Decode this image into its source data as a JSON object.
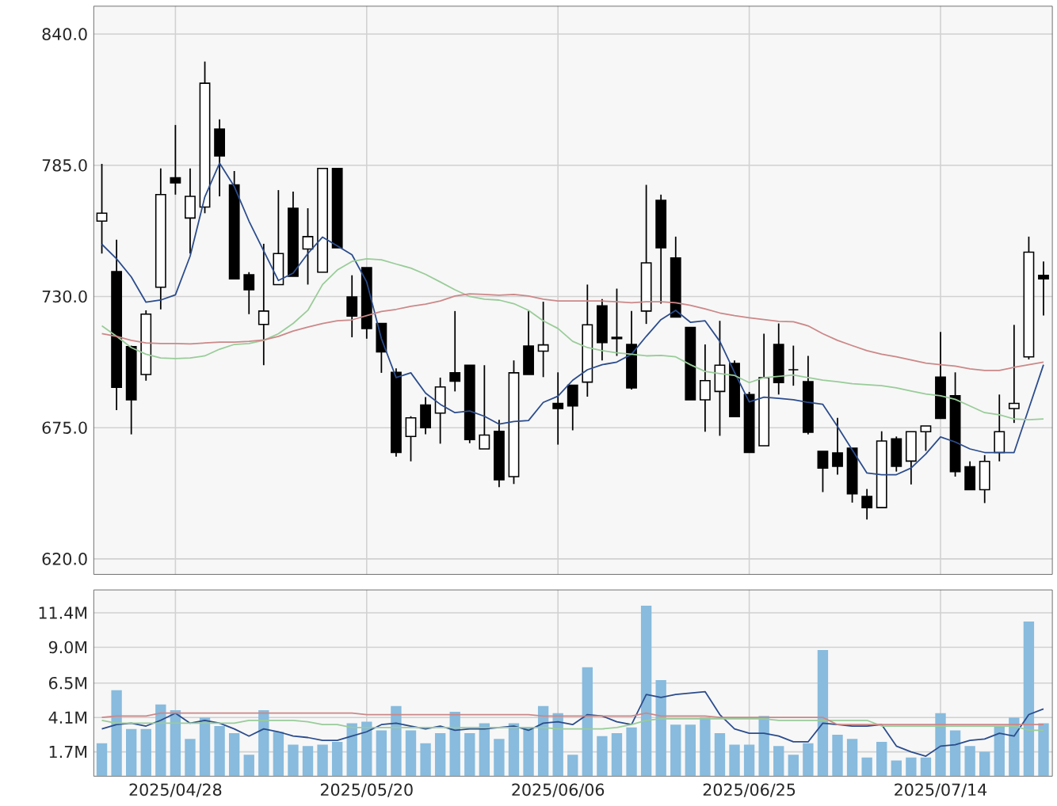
{
  "chart_data": [
    {
      "type": "candlestick",
      "tick_labels": "y",
      "grid": true,
      "categories": [
        null,
        null,
        null,
        null,
        null,
        "2025/04/28",
        null,
        null,
        null,
        null,
        null,
        null,
        null,
        null,
        null,
        null,
        null,
        null,
        "2025/05/20",
        null,
        null,
        null,
        null,
        null,
        null,
        null,
        null,
        null,
        null,
        null,
        null,
        "2025/06/06",
        null,
        null,
        null,
        null,
        null,
        null,
        null,
        null,
        null,
        null,
        null,
        null,
        "2025/06/25",
        null,
        null,
        null,
        null,
        null,
        null,
        null,
        null,
        null,
        null,
        null,
        null,
        "2025/07/14",
        null,
        null,
        null,
        null,
        null,
        null,
        null
      ],
      "ylim": [
        613.5,
        851.7
      ],
      "yticks": [
        {
          "value": 620,
          "label": "620.0"
        },
        {
          "value": 675,
          "label": "675.0"
        },
        {
          "value": 730,
          "label": "730.0"
        },
        {
          "value": 785,
          "label": "785.0"
        },
        {
          "value": 840,
          "label": "840.0"
        }
      ],
      "ohlc": [
        [
          761.6,
          785.6,
          748.0,
          764.9
        ],
        [
          740.4,
          753.8,
          682.4,
          691.9
        ],
        [
          709.0,
          709.4,
          672.2,
          686.7
        ],
        [
          697.3,
          724.2,
          694.7,
          722.6
        ],
        [
          733.9,
          783.7,
          724.6,
          772.7
        ],
        [
          779.8,
          801.9,
          772.7,
          777.6
        ],
        [
          762.9,
          783.7,
          748.0,
          772.0
        ],
        [
          767.5,
          828.5,
          764.9,
          819.4
        ],
        [
          800.2,
          804.3,
          772.0,
          788.9
        ],
        [
          776.8,
          782.6,
          737.4,
          737.4
        ],
        [
          739.1,
          740.2,
          722.6,
          732.8
        ],
        [
          718.3,
          752.1,
          701.2,
          723.9
        ],
        [
          735.0,
          774.6,
          735.0,
          748.0
        ],
        [
          767.0,
          774.0,
          738.5,
          738.5
        ],
        [
          749.9,
          767.0,
          735.0,
          755.1
        ],
        [
          740.2,
          783.7,
          740.2,
          783.7
        ],
        [
          783.7,
          783.7,
          750.4,
          750.4
        ],
        [
          729.8,
          738.9,
          712.9,
          721.8
        ],
        [
          742.1,
          742.1,
          712.3,
          716.6
        ],
        [
          718.7,
          718.7,
          698.0,
          706.8
        ],
        [
          698.2,
          699.9,
          662.9,
          664.6
        ],
        [
          671.3,
          679.8,
          660.9,
          679.1
        ],
        [
          684.5,
          687.8,
          672.2,
          675.0
        ],
        [
          681.1,
          696.0,
          668.3,
          692.1
        ],
        [
          698.0,
          723.9,
          690.2,
          694.5
        ],
        [
          701.2,
          701.2,
          668.5,
          670.0
        ],
        [
          666.1,
          701.2,
          666.1,
          671.9
        ],
        [
          673.5,
          678.3,
          650.1,
          653.2
        ],
        [
          654.5,
          703.2,
          651.4,
          698.0
        ],
        [
          709.2,
          723.9,
          697.3,
          697.3
        ],
        [
          707.1,
          727.8,
          696.2,
          709.7
        ],
        [
          685.2,
          698.2,
          667.9,
          683.0
        ],
        [
          692.8,
          692.8,
          673.9,
          684.1
        ],
        [
          694.1,
          735.0,
          688.0,
          718.1
        ],
        [
          726.1,
          728.9,
          703.2,
          710.7
        ],
        [
          712.9,
          733.3,
          705.1,
          712.3
        ],
        [
          709.9,
          723.9,
          691.0,
          691.7
        ],
        [
          723.9,
          776.8,
          718.5,
          744.1
        ],
        [
          770.3,
          772.7,
          727.0,
          750.4
        ],
        [
          746.2,
          755.1,
          721.4,
          721.4
        ],
        [
          717.0,
          717.0,
          686.7,
          686.7
        ],
        [
          686.7,
          709.9,
          673.3,
          694.7
        ],
        [
          690.2,
          719.8,
          671.6,
          701.2
        ],
        [
          701.9,
          703.2,
          679.6,
          679.6
        ],
        [
          688.9,
          690.0,
          664.6,
          664.6
        ],
        [
          667.4,
          714.4,
          667.4,
          696.0
        ],
        [
          709.9,
          718.7,
          688.9,
          693.9
        ],
        [
          699.3,
          709.4,
          692.6,
          699.3
        ],
        [
          694.3,
          705.1,
          672.2,
          673.1
        ],
        [
          665.1,
          665.1,
          648.0,
          658.1
        ],
        [
          664.4,
          679.1,
          655.3,
          658.8
        ],
        [
          666.4,
          666.4,
          643.6,
          647.3
        ],
        [
          646.2,
          649.3,
          636.5,
          641.5
        ],
        [
          641.5,
          673.5,
          641.5,
          669.4
        ],
        [
          670.3,
          671.3,
          656.6,
          658.8
        ],
        [
          661.0,
          673.3,
          651.2,
          673.3
        ],
        [
          673.3,
          675.7,
          665.3,
          675.7
        ],
        [
          696.2,
          715.1,
          678.9,
          678.9
        ],
        [
          688.4,
          698.2,
          654.5,
          656.6
        ],
        [
          658.6,
          660.9,
          649.0,
          649.0
        ],
        [
          649.0,
          663.5,
          643.4,
          660.9
        ],
        [
          664.6,
          688.9,
          660.9,
          673.3
        ],
        [
          683.0,
          718.1,
          677.0,
          685.2
        ],
        [
          704.7,
          755.1,
          703.6,
          748.6
        ],
        [
          738.9,
          744.7,
          722.0,
          737.4
        ]
      ],
      "series": [
        {
          "type": "line",
          "color": "#2b4c8c",
          "values": [
            751.9,
            745.8,
            738.2,
            727.6,
            728.5,
            730.7,
            746.9,
            771.8,
            785.9,
            776.1,
            761.6,
            749.1,
            736.7,
            739.8,
            748.0,
            754.9,
            751.2,
            747.5,
            736.1,
            712.3,
            696.0,
            698.0,
            689.5,
            684.8,
            681.3,
            682.0,
            679.8,
            676.5,
            677.6,
            678.0,
            685.6,
            688.2,
            694.9,
            699.3,
            701.4,
            702.5,
            705.8,
            713.3,
            720.3,
            724.2,
            719.2,
            719.8,
            711.2,
            698.2,
            685.8,
            687.8,
            687.3,
            686.7,
            685.6,
            684.8,
            675.5,
            665.7,
            656.0,
            655.3,
            655.3,
            658.1,
            664.0,
            671.1,
            669.0,
            666.1,
            664.6,
            664.6,
            664.6,
            683.0,
            701.4
          ]
        },
        {
          "type": "line",
          "color": "#99cc99",
          "values": [
            717.7,
            713.3,
            708.6,
            705.8,
            704.2,
            704.0,
            704.2,
            705.1,
            707.9,
            709.9,
            710.3,
            711.6,
            714.4,
            718.7,
            724.2,
            735.0,
            741.1,
            744.7,
            745.8,
            745.4,
            743.6,
            741.9,
            739.3,
            736.1,
            732.8,
            730.0,
            728.9,
            728.5,
            727.0,
            724.2,
            719.8,
            716.6,
            711.2,
            708.6,
            707.3,
            706.4,
            705.8,
            705.1,
            705.3,
            704.7,
            701.4,
            698.6,
            697.7,
            696.9,
            693.9,
            696.0,
            696.5,
            697.1,
            696.0,
            694.9,
            694.3,
            693.4,
            693.0,
            692.6,
            691.7,
            690.4,
            689.1,
            688.4,
            686.9,
            684.1,
            681.3,
            680.4,
            678.7,
            678.3,
            678.7
          ]
        },
        {
          "type": "line",
          "color": "#cc8888",
          "values": [
            714.4,
            713.3,
            711.6,
            710.5,
            710.3,
            710.3,
            710.1,
            710.5,
            710.9,
            710.9,
            711.2,
            711.8,
            713.3,
            715.5,
            717.2,
            718.7,
            719.8,
            720.2,
            722.0,
            723.7,
            724.6,
            725.9,
            726.8,
            728.1,
            730.2,
            731.1,
            730.9,
            730.5,
            730.9,
            730.2,
            728.9,
            728.1,
            728.1,
            728.1,
            728.1,
            727.8,
            727.4,
            727.8,
            727.8,
            727.4,
            726.3,
            724.8,
            723.1,
            722.0,
            721.1,
            720.3,
            719.6,
            719.4,
            717.7,
            714.4,
            711.6,
            709.4,
            707.3,
            705.8,
            704.7,
            703.4,
            702.1,
            701.4,
            700.8,
            699.7,
            699.0,
            699.0,
            700.3,
            701.4,
            702.5
          ]
        }
      ]
    },
    {
      "type": "bar",
      "grid": true,
      "categories": [
        null,
        null,
        null,
        null,
        null,
        "2025/04/28",
        null,
        null,
        null,
        null,
        null,
        null,
        null,
        null,
        null,
        null,
        null,
        null,
        "2025/05/20",
        null,
        null,
        null,
        null,
        null,
        null,
        null,
        null,
        null,
        null,
        null,
        null,
        "2025/06/06",
        null,
        null,
        null,
        null,
        null,
        null,
        null,
        null,
        null,
        null,
        null,
        null,
        "2025/06/25",
        null,
        null,
        null,
        null,
        null,
        null,
        null,
        null,
        null,
        null,
        null,
        null,
        "2025/07/14",
        null,
        null,
        null,
        null,
        null,
        null,
        null
      ],
      "ylim": [
        0,
        13.0
      ],
      "yticks": [
        {
          "value": 1.7,
          "label": "1.7M"
        },
        {
          "value": 4.1,
          "label": "4.1M"
        },
        {
          "value": 6.5,
          "label": "6.5M"
        },
        {
          "value": 9.0,
          "label": "9.0M"
        },
        {
          "value": 11.4,
          "label": "11.4M"
        }
      ],
      "series": [
        {
          "type": "bar",
          "color": "#88bbdd",
          "values": [
            2.3,
            6.0,
            3.3,
            3.3,
            5.0,
            4.6,
            2.6,
            4.1,
            3.5,
            3.0,
            1.5,
            4.6,
            3.1,
            2.2,
            2.1,
            2.2,
            2.4,
            3.7,
            3.8,
            3.2,
            4.9,
            3.2,
            2.3,
            3.0,
            4.5,
            3.0,
            3.7,
            2.6,
            3.7,
            3.4,
            4.9,
            4.4,
            1.5,
            7.6,
            2.8,
            3.0,
            3.4,
            11.9,
            6.7,
            3.6,
            3.6,
            4.1,
            3.0,
            2.2,
            2.2,
            4.2,
            2.1,
            1.5,
            2.3,
            8.8,
            2.9,
            2.6,
            1.3,
            2.4,
            1.1,
            1.3,
            1.3,
            4.4,
            3.2,
            2.1,
            1.7,
            3.5,
            4.1,
            10.8,
            3.7
          ]
        },
        {
          "type": "line",
          "color": "#2b4c8c",
          "values": [
            3.3,
            3.6,
            3.7,
            3.5,
            3.9,
            4.4,
            3.7,
            3.9,
            3.7,
            3.3,
            2.8,
            3.3,
            3.1,
            2.8,
            2.7,
            2.5,
            2.5,
            2.8,
            3.1,
            3.6,
            3.7,
            3.5,
            3.3,
            3.5,
            3.2,
            3.3,
            3.3,
            3.4,
            3.5,
            3.2,
            3.7,
            3.8,
            3.6,
            4.3,
            4.2,
            3.8,
            3.6,
            5.7,
            5.5,
            5.7,
            5.8,
            5.9,
            4.3,
            3.3,
            3.0,
            3.0,
            2.8,
            2.4,
            2.4,
            3.7,
            3.6,
            3.5,
            3.5,
            3.6,
            2.1,
            1.7,
            1.4,
            2.1,
            2.2,
            2.5,
            2.6,
            3.0,
            2.8,
            4.3,
            4.7
          ]
        },
        {
          "type": "line",
          "color": "#99cc99",
          "values": [
            3.9,
            3.7,
            3.7,
            3.7,
            3.7,
            3.7,
            3.7,
            3.7,
            3.7,
            3.7,
            3.9,
            3.9,
            3.9,
            3.9,
            3.8,
            3.6,
            3.6,
            3.4,
            3.4,
            3.4,
            3.4,
            3.4,
            3.4,
            3.4,
            3.4,
            3.4,
            3.4,
            3.4,
            3.4,
            3.4,
            3.4,
            3.3,
            3.3,
            3.3,
            3.3,
            3.4,
            3.6,
            3.9,
            4.0,
            4.0,
            4.0,
            4.0,
            4.0,
            4.0,
            4.0,
            4.0,
            3.9,
            3.9,
            3.9,
            3.9,
            3.9,
            3.9,
            3.9,
            3.5,
            3.5,
            3.5,
            3.5,
            3.5,
            3.5,
            3.5,
            3.5,
            3.5,
            3.5,
            3.2,
            3.2
          ]
        },
        {
          "type": "line",
          "color": "#cc8888",
          "values": [
            4.1,
            4.2,
            4.2,
            4.2,
            4.4,
            4.4,
            4.4,
            4.4,
            4.4,
            4.4,
            4.4,
            4.4,
            4.4,
            4.4,
            4.4,
            4.4,
            4.4,
            4.4,
            4.3,
            4.3,
            4.3,
            4.3,
            4.3,
            4.3,
            4.3,
            4.3,
            4.3,
            4.3,
            4.3,
            4.3,
            4.2,
            4.2,
            4.2,
            4.2,
            4.2,
            4.2,
            4.2,
            4.4,
            4.2,
            4.2,
            4.2,
            4.2,
            4.1,
            4.1,
            4.1,
            4.1,
            4.1,
            4.1,
            4.1,
            4.1,
            3.6,
            3.6,
            3.6,
            3.6,
            3.6,
            3.6,
            3.6,
            3.6,
            3.6,
            3.6,
            3.6,
            3.6,
            3.6,
            3.6,
            3.6
          ]
        }
      ]
    }
  ]
}
